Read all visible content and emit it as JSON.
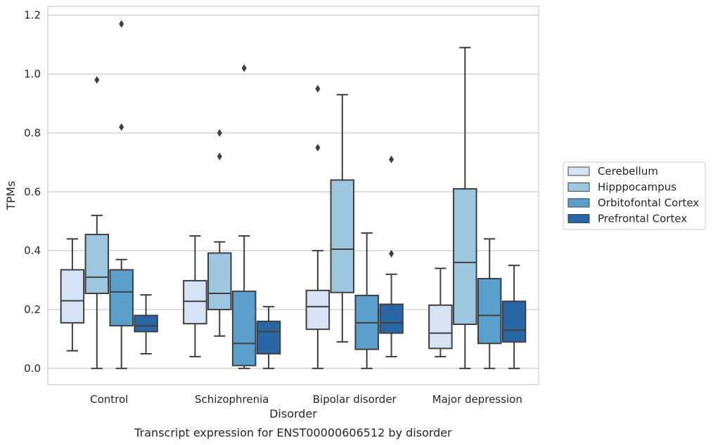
{
  "chart_data": {
    "type": "box",
    "title": "",
    "caption": "Transcript expression for ENST00000606512 by disorder",
    "xlabel": "Disorder",
    "ylabel": "TPMs",
    "ylim": [
      -0.055,
      1.23
    ],
    "yticks": [
      0.0,
      0.2,
      0.4,
      0.6,
      0.8,
      1.0,
      1.2
    ],
    "ytick_labels": [
      "0.0",
      "0.2",
      "0.4",
      "0.6",
      "0.8",
      "1.0",
      "1.2"
    ],
    "grid": true,
    "legend_position": "right",
    "categories": [
      "Control",
      "Schizophrenia",
      "Bipolar disorder",
      "Major depression"
    ],
    "series": [
      {
        "name": "Cerebellum",
        "color": "#d4e4f4",
        "boxes": [
          {
            "whislo": 0.06,
            "q1": 0.155,
            "med": 0.23,
            "q3": 0.335,
            "whishi": 0.44,
            "fliers": []
          },
          {
            "whislo": 0.04,
            "q1": 0.152,
            "med": 0.228,
            "q3": 0.298,
            "whishi": 0.45,
            "fliers": []
          },
          {
            "whislo": 0.0,
            "q1": 0.133,
            "med": 0.21,
            "q3": 0.265,
            "whishi": 0.4,
            "fliers": [
              0.75,
              0.95
            ]
          },
          {
            "whislo": 0.04,
            "q1": 0.068,
            "med": 0.12,
            "q3": 0.215,
            "whishi": 0.34,
            "fliers": []
          }
        ]
      },
      {
        "name": "Hipppocampus",
        "color": "#9dc7e0",
        "boxes": [
          {
            "whislo": 0.0,
            "q1": 0.255,
            "med": 0.31,
            "q3": 0.455,
            "whishi": 0.52,
            "fliers": [
              0.98
            ]
          },
          {
            "whislo": 0.11,
            "q1": 0.2,
            "med": 0.255,
            "q3": 0.392,
            "whishi": 0.43,
            "fliers": [
              0.72,
              0.8
            ]
          },
          {
            "whislo": 0.09,
            "q1": 0.258,
            "med": 0.405,
            "q3": 0.64,
            "whishi": 0.93,
            "fliers": []
          },
          {
            "whislo": 0.0,
            "q1": 0.15,
            "med": 0.36,
            "q3": 0.61,
            "whishi": 1.09,
            "fliers": []
          }
        ]
      },
      {
        "name": "Orbitofontal Cortex",
        "color": "#5b9fcc",
        "boxes": [
          {
            "whislo": 0.0,
            "q1": 0.145,
            "med": 0.26,
            "q3": 0.335,
            "whishi": 0.37,
            "fliers": [
              0.82,
              1.17
            ]
          },
          {
            "whislo": 0.0,
            "q1": 0.01,
            "med": 0.085,
            "q3": 0.262,
            "whishi": 0.45,
            "fliers": [
              1.02
            ]
          },
          {
            "whislo": 0.0,
            "q1": 0.065,
            "med": 0.155,
            "q3": 0.248,
            "whishi": 0.46,
            "fliers": []
          },
          {
            "whislo": 0.0,
            "q1": 0.085,
            "med": 0.18,
            "q3": 0.305,
            "whishi": 0.44,
            "fliers": []
          }
        ]
      },
      {
        "name": "Prefrontal Cortex",
        "color": "#2866a6",
        "boxes": [
          {
            "whislo": 0.05,
            "q1": 0.125,
            "med": 0.145,
            "q3": 0.18,
            "whishi": 0.25,
            "fliers": []
          },
          {
            "whislo": 0.0,
            "q1": 0.05,
            "med": 0.125,
            "q3": 0.16,
            "whishi": 0.21,
            "fliers": []
          },
          {
            "whislo": 0.04,
            "q1": 0.12,
            "med": 0.155,
            "q3": 0.218,
            "whishi": 0.32,
            "fliers": [
              0.39,
              0.71
            ]
          },
          {
            "whislo": 0.0,
            "q1": 0.09,
            "med": 0.13,
            "q3": 0.228,
            "whishi": 0.35,
            "fliers": []
          }
        ]
      }
    ]
  }
}
